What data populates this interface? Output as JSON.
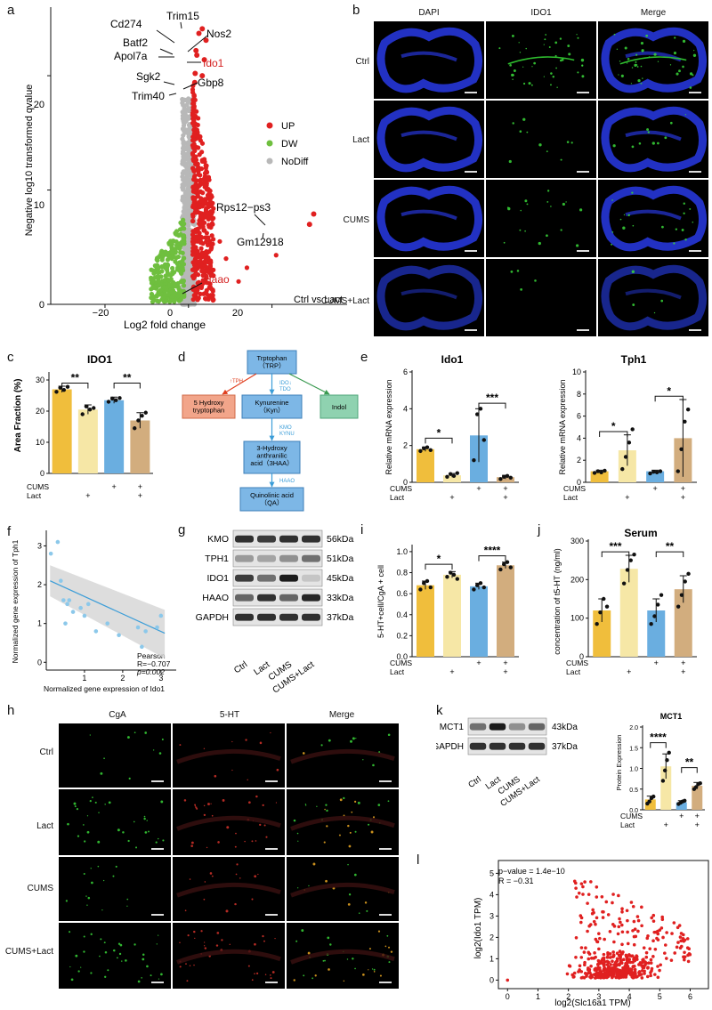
{
  "labels": {
    "a": "a",
    "b": "b",
    "c": "c",
    "d": "d",
    "e": "e",
    "f": "f",
    "g": "g",
    "h": "h",
    "i": "i",
    "j": "j",
    "k": "k",
    "l": "l"
  },
  "panel_a": {
    "xlabel": "Log2 fold change",
    "ylabel": "Negative log10 transformed qvalue",
    "xticks": [
      "−20",
      "0",
      "20"
    ],
    "yticks": [
      "0",
      "10",
      "20"
    ],
    "legend": [
      {
        "name": "UP",
        "color": "#e02020"
      },
      {
        "name": "DW",
        "color": "#6fbf3f"
      },
      {
        "name": "NoDiff",
        "color": "#b8b8b8"
      }
    ],
    "comparison": "Ctrl vs Lact",
    "genes": [
      {
        "name": "Cd274",
        "color": "#111"
      },
      {
        "name": "Trim15",
        "color": "#111"
      },
      {
        "name": "Nos2",
        "color": "#111"
      },
      {
        "name": "Batf2",
        "color": "#111"
      },
      {
        "name": "Apol7a",
        "color": "#111"
      },
      {
        "name": "Ido1",
        "color": "#d42020"
      },
      {
        "name": "Sgk2",
        "color": "#111"
      },
      {
        "name": "Gbp8",
        "color": "#111"
      },
      {
        "name": "Trim40",
        "color": "#111"
      },
      {
        "name": "Rps12−ps3",
        "color": "#111"
      },
      {
        "name": "Gm12918",
        "color": "#111"
      },
      {
        "name": "Haao",
        "color": "#d42020"
      }
    ]
  },
  "panel_b": {
    "columns": [
      "DAPI",
      "IDO1",
      "Merge"
    ],
    "rows": [
      "Ctrl",
      "Lact",
      "CUMS",
      "CUMS+Lact"
    ]
  },
  "group_colors": [
    "#f0be3c",
    "#f6e7a6",
    "#6aaee0",
    "#d2ad7e"
  ],
  "treatment": {
    "cums": "CUMS",
    "lact": "Lact",
    "signs_cums": [
      "",
      "",
      "+",
      "+"
    ],
    "signs_lact": [
      "",
      "+",
      "",
      "+"
    ]
  },
  "panel_c": {
    "title": "IDO1",
    "ylabel": "Area Fraction  (%)",
    "yticks": [
      "0",
      "10",
      "20",
      "30"
    ],
    "sig": [
      "**",
      "**"
    ]
  },
  "panel_d": {
    "boxes": [
      "Trptophan\n（TRP）",
      "Kynurenine\n（Kyn）",
      "3-Hydroxy\nanthranilic\nacid（3HAA）",
      "Quinolinic acid\n（QA）",
      "5 Hydroxy\ntryptophan",
      "Indol"
    ],
    "enzymes": [
      "IDO↓\nTDO",
      "KMO\nKYNU",
      "HAAO",
      "↑TPH"
    ]
  },
  "panel_e": [
    {
      "title": "Ido1",
      "ylabel": "Relative mRNA expression",
      "yticks": [
        "0",
        "2",
        "4",
        "6"
      ],
      "sig": [
        "*",
        "***"
      ]
    },
    {
      "title": "Tph1",
      "ylabel": "Relative mRNA expression",
      "yticks": [
        "0",
        "2",
        "4",
        "6",
        "8",
        "10"
      ],
      "sig": [
        "*",
        "*"
      ]
    }
  ],
  "panel_f": {
    "xlabel": "Normalized gene expression of Ido1",
    "ylabel": "Normalized gene expression of Tph1",
    "xticks": [
      "1",
      "2",
      "3"
    ],
    "yticks": [
      "0",
      "1",
      "2",
      "3"
    ],
    "stats": [
      "Pearson",
      "R=−0.707",
      "p=0.002"
    ]
  },
  "panel_g": {
    "proteins": [
      {
        "name": "KMO",
        "kda": "56kDa"
      },
      {
        "name": "TPH1",
        "kda": "51kDa"
      },
      {
        "name": "IDO1",
        "kda": "45kDa"
      },
      {
        "name": "HAAO",
        "kda": "33kDa"
      },
      {
        "name": "GAPDH",
        "kda": "37kDa"
      }
    ],
    "lanes": [
      "Ctrl",
      "Lact",
      "CUMS",
      "CUMS+Lact"
    ]
  },
  "panel_i": {
    "ylabel": "5-HT+cell/CgA + cell",
    "yticks": [
      "0.0",
      "0.2",
      "0.4",
      "0.6",
      "0.8",
      "1.0"
    ],
    "sig": [
      "*",
      "****"
    ]
  },
  "panel_j": {
    "title": "Serum",
    "ylabel": "concentration of t5-HT (ng/ml)",
    "yticks": [
      "0",
      "100",
      "200",
      "300"
    ],
    "sig": [
      "***",
      "**"
    ]
  },
  "panel_h": {
    "columns": [
      "CgA",
      "5-HT",
      "Merge"
    ],
    "rows": [
      "Ctrl",
      "Lact",
      "CUMS",
      "CUMS+Lact"
    ]
  },
  "panel_k": {
    "proteins": [
      {
        "name": "MCT1",
        "kda": "43kDa"
      },
      {
        "name": "GAPDH",
        "kda": "37kDa"
      }
    ],
    "lanes": [
      "Ctrl",
      "Lact",
      "CUMS",
      "CUMS+Lact"
    ],
    "title": "MCT1",
    "ylabel": "Protein Expression",
    "yticks": [
      "0.0",
      "0.5",
      "1.0",
      "1.5",
      "2.0"
    ],
    "sig": [
      "****",
      "**"
    ]
  },
  "panel_l": {
    "xlabel": "log2(Slc16a1 TPM)",
    "ylabel": "log2(Ido1 TPM)",
    "xticks": [
      "0",
      "1",
      "2",
      "3",
      "4",
      "5",
      "6"
    ],
    "yticks": [
      "0",
      "1",
      "2",
      "3",
      "4",
      "5"
    ],
    "stats": [
      "p−value = 1.4e−10",
      "R = −0.31"
    ]
  },
  "chart_data": [
    {
      "type": "scatter",
      "name": "volcano",
      "xlabel": "Log2 fold change",
      "ylabel": "Negative log10 transformed qvalue",
      "xlim": [
        -33,
        38
      ],
      "ylim": [
        0,
        26
      ],
      "highlight": [
        {
          "label": "Cd274",
          "x": 2.5,
          "y": 23.7
        },
        {
          "label": "Trim15",
          "x": 3.3,
          "y": 24.1
        },
        {
          "label": "Nos2",
          "x": 4.2,
          "y": 23.1
        },
        {
          "label": "Batf2",
          "x": 1.8,
          "y": 22.2
        },
        {
          "label": "Apol7a",
          "x": 2.0,
          "y": 21.8
        },
        {
          "label": "Ido1",
          "x": 3.8,
          "y": 21.4
        },
        {
          "label": "Sgk2",
          "x": 1.6,
          "y": 20.2
        },
        {
          "label": "Gbp8",
          "x": 3.3,
          "y": 20.0
        },
        {
          "label": "Trim40",
          "x": 1.5,
          "y": 19.4
        },
        {
          "label": "Rps12−ps3",
          "x": 30,
          "y": 7.9
        },
        {
          "label": "Gm12918",
          "x": 29,
          "y": 7.0
        },
        {
          "label": "Haao",
          "x": 5.0,
          "y": 2.8
        }
      ]
    },
    {
      "type": "bar",
      "name": "IDO1 area fraction",
      "categories": [
        "Ctrl",
        "Lact",
        "CUMS",
        "CUMS+Lact"
      ],
      "values": [
        27,
        20.5,
        23.5,
        17
      ],
      "errors": [
        1,
        1.5,
        1,
        2.5
      ],
      "ylim": [
        0,
        32
      ]
    },
    {
      "type": "bar",
      "name": "Ido1 mRNA",
      "categories": [
        "Ctrl",
        "Lact",
        "CUMS",
        "CUMS+Lact"
      ],
      "values": [
        1.8,
        0.38,
        2.55,
        0.28
      ],
      "errors": [
        0.12,
        0.1,
        1.45,
        0.1
      ],
      "ylim": [
        0,
        6
      ]
    },
    {
      "type": "bar",
      "name": "Tph1 mRNA",
      "categories": [
        "Ctrl",
        "Lact",
        "CUMS",
        "CUMS+Lact"
      ],
      "values": [
        1.0,
        2.9,
        1.0,
        4.0
      ],
      "errors": [
        0.1,
        1.4,
        0.1,
        3.5
      ],
      "ylim": [
        0,
        10
      ]
    },
    {
      "type": "scatter",
      "name": "Ido1 vs Tph1",
      "x": [
        0.12,
        0.3,
        0.38,
        0.45,
        0.6,
        0.7,
        0.9,
        1.0,
        1.1,
        0.5,
        0.55,
        1.3,
        1.6,
        1.9,
        2.4,
        2.5,
        2.6,
        2.9,
        3.0
      ],
      "y": [
        2.8,
        3.1,
        2.1,
        1.6,
        1.6,
        1.3,
        1.4,
        1.2,
        1.5,
        1.0,
        1.5,
        0.8,
        1.0,
        0.7,
        0.9,
        0.4,
        0.8,
        0.9,
        1.2
      ],
      "xlim": [
        0,
        3.4
      ],
      "ylim": [
        -0.2,
        3.4
      ]
    },
    {
      "type": "bar",
      "name": "5-HT+/CgA+",
      "categories": [
        "Ctrl",
        "Lact",
        "CUMS",
        "CUMS+Lact"
      ],
      "values": [
        0.68,
        0.78,
        0.67,
        0.87
      ],
      "errors": [
        0.04,
        0.03,
        0.03,
        0.03
      ],
      "ylim": [
        0,
        1.05
      ]
    },
    {
      "type": "bar",
      "name": "Serum t5-HT",
      "categories": [
        "Ctrl",
        "Lact",
        "CUMS",
        "CUMS+Lact"
      ],
      "values": [
        120,
        228,
        120,
        175
      ],
      "errors": [
        30,
        35,
        30,
        35
      ],
      "ylim": [
        0,
        300
      ]
    },
    {
      "type": "bar",
      "name": "MCT1 protein",
      "categories": [
        "Ctrl",
        "Lact",
        "CUMS",
        "CUMS+Lact"
      ],
      "values": [
        0.25,
        1.05,
        0.18,
        0.58
      ],
      "errors": [
        0.08,
        0.3,
        0.04,
        0.08
      ],
      "ylim": [
        0,
        2.0
      ]
    },
    {
      "type": "scatter",
      "name": "Slc16a1 vs Ido1",
      "xlim": [
        -0.3,
        6.6
      ],
      "ylim": [
        -0.4,
        5.6
      ],
      "n_points": 480,
      "color": "#e02020"
    }
  ]
}
